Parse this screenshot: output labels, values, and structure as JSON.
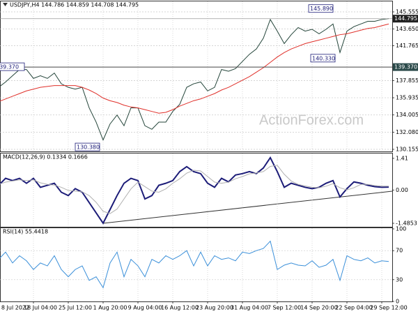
{
  "chart_data": [
    {
      "type": "line",
      "title": "USDJPY,H4 144.786 144.859 144.708 144.795",
      "categories": [
        "8 Jul 2022",
        null,
        null,
        null,
        null,
        "18 Jul 04:00",
        null,
        null,
        null,
        null,
        "25 Jul 12:00",
        null,
        null,
        null,
        null,
        "1 Aug 20:00",
        null,
        null,
        null,
        null,
        "9 Aug 04:00",
        null,
        null,
        null,
        null,
        "16 Aug 12:00",
        null,
        null,
        null,
        null,
        "23 Aug 20:00",
        null,
        null,
        null,
        null,
        "31 Aug 04:00",
        null,
        null,
        null,
        null,
        "7 Sep 12:00",
        null,
        null,
        null,
        null,
        "14 Sep 20:00",
        null,
        null,
        null,
        null,
        "22 Sep 04:00",
        null,
        null,
        null,
        null,
        "29 Sep 12:00",
        null
      ],
      "series": [
        {
          "color": "#24453a",
          "values": [
            137.1,
            137.7,
            138.4,
            139.1,
            139.1,
            138.1,
            138.4,
            138.1,
            138.7,
            137.5,
            137.1,
            136.9,
            137.1,
            134.8,
            133.2,
            131.2,
            133.0,
            134.0,
            132.8,
            134.8,
            134.8,
            132.8,
            132.4,
            133.2,
            133.2,
            134.4,
            135.2,
            137.1,
            137.5,
            137.7,
            136.7,
            137.1,
            139.1,
            138.9,
            139.2,
            140.0,
            140.8,
            141.4,
            142.6,
            144.7,
            143.4,
            142.0,
            143.0,
            143.8,
            143.4,
            143.6,
            143.1,
            143.6,
            144.2,
            141.0,
            143.4,
            143.9,
            144.2,
            144.5,
            144.5,
            144.7,
            144.8
          ]
        },
        {
          "color": "#e0302a",
          "values": [
            135.5,
            135.8,
            136.1,
            136.4,
            136.7,
            136.9,
            137.1,
            137.2,
            137.3,
            137.3,
            137.3,
            137.3,
            137.1,
            136.8,
            136.4,
            135.9,
            135.6,
            135.4,
            135.1,
            134.9,
            134.8,
            134.6,
            134.4,
            134.2,
            134.3,
            134.6,
            135.0,
            135.3,
            135.6,
            135.8,
            136.1,
            136.4,
            136.8,
            137.1,
            137.5,
            137.9,
            138.3,
            138.8,
            139.3,
            139.9,
            140.5,
            141.0,
            141.4,
            141.7,
            142.0,
            142.2,
            142.4,
            142.6,
            142.8,
            143.0,
            143.1,
            143.3,
            143.5,
            143.7,
            143.8,
            144.0,
            144.2
          ]
        }
      ],
      "ylim": [
        129.92,
        146.65
      ],
      "yticks": [
        {
          "value": 145.555,
          "label": "145.555"
        },
        {
          "value": 143.65,
          "label": "143.650"
        },
        {
          "value": 141.765,
          "label": "141.765"
        },
        {
          "value": 137.855,
          "label": "137.855"
        },
        {
          "value": 135.935,
          "label": "135.935"
        },
        {
          "value": 134.005,
          "label": "134.005"
        },
        {
          "value": 132.08,
          "label": "132.080"
        },
        {
          "value": 130.155,
          "label": "130.155"
        }
      ],
      "grid": true,
      "last_price": {
        "value": 144.795,
        "label": "144.795"
      },
      "hline": {
        "value": 139.37,
        "label": "139.370"
      },
      "annotations": [
        {
          "value": 145.89,
          "label": "145.890"
        },
        {
          "value": 140.33,
          "label": "140.330"
        },
        {
          "value": 130.38,
          "label": "130.380"
        }
      ]
    },
    {
      "type": "line",
      "title": "MACD(12,26,9) 0.1334 0.1666",
      "series": [
        {
          "color": "#1c1c78",
          "values": [
            0.21,
            0.52,
            0.42,
            0.52,
            0.3,
            0.52,
            0.12,
            0.21,
            0.3,
            -0.1,
            -0.25,
            0.06,
            -0.1,
            -0.56,
            -1.02,
            -1.48,
            -0.87,
            -0.25,
            0.3,
            0.52,
            0.42,
            -0.4,
            -0.25,
            0.21,
            0.3,
            0.42,
            0.82,
            1.04,
            0.82,
            0.73,
            0.3,
            0.12,
            0.52,
            0.36,
            0.67,
            0.73,
            0.82,
            0.73,
            0.98,
            1.44,
            0.82,
            0.12,
            0.3,
            0.21,
            0.12,
            0.06,
            0.12,
            0.3,
            0.42,
            -0.31,
            0.06,
            0.36,
            0.3,
            0.21,
            0.15,
            0.12,
            0.13
          ]
        },
        {
          "color": "#b0b0b0",
          "values": [
            0.25,
            0.35,
            0.4,
            0.45,
            0.42,
            0.45,
            0.32,
            0.25,
            0.22,
            0.12,
            -0.02,
            -0.05,
            -0.08,
            -0.25,
            -0.55,
            -0.95,
            -1.05,
            -0.85,
            -0.4,
            0.05,
            0.35,
            0.15,
            -0.05,
            -0.1,
            0.05,
            0.3,
            0.5,
            0.75,
            0.88,
            0.85,
            0.6,
            0.35,
            0.3,
            0.35,
            0.5,
            0.6,
            0.72,
            0.76,
            0.82,
            1.05,
            1.1,
            0.7,
            0.4,
            0.25,
            0.18,
            0.12,
            0.1,
            0.17,
            0.28,
            0.1,
            0.0,
            0.1,
            0.25,
            0.25,
            0.2,
            0.17,
            0.17
          ]
        }
      ],
      "ylim": [
        -1.64,
        1.595
      ],
      "yticks": [
        1.41,
        {
          "value": 0,
          "label": "0.00"
        },
        -1.4853
      ]
    },
    {
      "type": "line",
      "title": "RSI(14) 55.4418",
      "series": [
        {
          "color": "#3a8fd9",
          "values": [
            58,
            68,
            53,
            63,
            56,
            44,
            53,
            49,
            63,
            44,
            34,
            44,
            49,
            29,
            34,
            19,
            53,
            68,
            34,
            58,
            49,
            34,
            58,
            53,
            63,
            58,
            63,
            70,
            49,
            68,
            49,
            63,
            58,
            60,
            56,
            68,
            66,
            70,
            73,
            83,
            44,
            50,
            53,
            50,
            49,
            56,
            47,
            50,
            58,
            29,
            63,
            58,
            56,
            60,
            53,
            56,
            55
          ]
        }
      ],
      "ylim": [
        0,
        100
      ],
      "yticks": [
        100,
        70,
        30,
        0
      ]
    }
  ],
  "watermark": "ActionForex.com"
}
